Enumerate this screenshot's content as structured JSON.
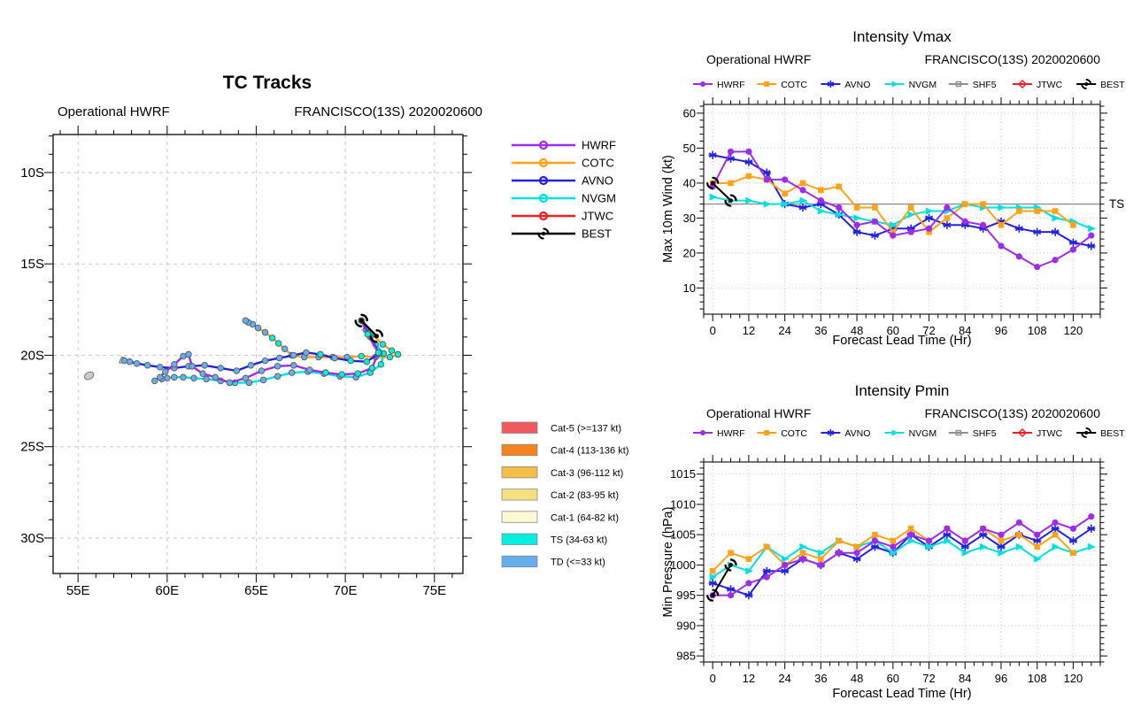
{
  "chart_data": [
    {
      "type": "map-tracks",
      "title": "TC Tracks",
      "subtitle_left": "Operational HWRF",
      "subtitle_right": "FRANCISCO(13S) 2020020600",
      "lon_range": [
        53.6,
        76.6
      ],
      "lat_range": [
        7.92,
        31.94
      ],
      "lon_ticks": {
        "labels": [
          "55E",
          "60E",
          "65E",
          "70E",
          "75E"
        ],
        "values": [
          55,
          60,
          65,
          70,
          75
        ],
        "minor_step": 1
      },
      "lat_ticks": {
        "labels": [
          "10S",
          "15S",
          "20S",
          "25S",
          "30S"
        ],
        "values": [
          10,
          15,
          20,
          25,
          30
        ],
        "minor_step": 1
      },
      "grid": true,
      "islands": [
        {
          "name": "island-northeast-of-track-end",
          "lon": 57.55,
          "lat": 20.27,
          "shape": "blob"
        },
        {
          "name": "island-southwest",
          "lon": 55.62,
          "lat": 21.12,
          "shape": "ellipse"
        }
      ],
      "marker_colors": {
        "ts": "#00F0DC",
        "td": "#66AEEC"
      },
      "track_legend": [
        "HWRF",
        "COTC",
        "AVNO",
        "NVGM",
        "JTWC",
        "BEST"
      ],
      "legend_colors": {
        "HWRF": "#A02BE8",
        "COTC": "#FFA216",
        "AVNO": "#2222E0",
        "NVGM": "#00E0E0",
        "JTWC": "#EE2020",
        "BEST": "#000000"
      },
      "tracks": [
        {
          "name": "HWRF",
          "color": "#A02BE8",
          "points": [
            [
              70.9,
              18.1
            ],
            [
              71.25,
              18.85
            ],
            [
              71.85,
              19.85
            ],
            [
              71.5,
              20.7
            ],
            [
              70.7,
              21.0
            ],
            [
              69.8,
              21.05
            ],
            [
              68.9,
              20.95
            ],
            [
              68.0,
              20.8
            ],
            [
              67.1,
              20.55
            ],
            [
              66.2,
              20.6
            ],
            [
              65.3,
              20.85
            ],
            [
              64.4,
              21.25
            ],
            [
              63.5,
              21.5
            ],
            [
              62.7,
              21.2
            ],
            [
              62.0,
              21.0
            ],
            [
              61.4,
              20.6
            ],
            [
              61.2,
              19.95
            ],
            [
              60.9,
              20.05
            ],
            [
              60.4,
              20.5
            ],
            [
              59.9,
              20.9
            ],
            [
              59.6,
              21.2
            ],
            [
              59.3,
              21.4
            ]
          ]
        },
        {
          "name": "COTC",
          "color": "#FFA216",
          "points": [
            [
              70.9,
              18.1
            ],
            [
              71.5,
              18.85
            ],
            [
              72.1,
              19.4
            ],
            [
              72.6,
              19.75
            ],
            [
              72.95,
              19.95
            ],
            [
              72.5,
              20.1
            ],
            [
              71.7,
              20.1
            ],
            [
              70.9,
              20.05
            ],
            [
              70.1,
              20.1
            ],
            [
              69.3,
              20.1
            ],
            [
              68.5,
              20.1
            ],
            [
              67.7,
              20.1
            ],
            [
              67.0,
              20.0
            ],
            [
              66.6,
              19.65
            ],
            [
              66.25,
              19.35
            ],
            [
              65.9,
              19.05
            ],
            [
              65.5,
              18.75
            ],
            [
              65.1,
              18.5
            ],
            [
              64.8,
              18.3
            ],
            [
              64.55,
              18.2
            ],
            [
              64.4,
              18.1
            ]
          ]
        },
        {
          "name": "AVNO",
          "color": "#2222E0",
          "points": [
            [
              70.9,
              18.1
            ],
            [
              71.4,
              19.0
            ],
            [
              71.9,
              19.9
            ],
            [
              71.2,
              20.35
            ],
            [
              70.3,
              20.3
            ],
            [
              69.4,
              20.15
            ],
            [
              68.6,
              19.95
            ],
            [
              67.8,
              19.85
            ],
            [
              67.1,
              20.0
            ],
            [
              66.3,
              20.15
            ],
            [
              65.5,
              20.3
            ],
            [
              64.7,
              20.55
            ],
            [
              63.9,
              20.85
            ],
            [
              63.0,
              20.7
            ],
            [
              62.1,
              20.55
            ],
            [
              61.2,
              20.6
            ],
            [
              60.4,
              20.7
            ],
            [
              59.6,
              20.65
            ],
            [
              58.9,
              20.55
            ],
            [
              58.3,
              20.45
            ],
            [
              57.9,
              20.35
            ],
            [
              57.6,
              20.3
            ]
          ]
        },
        {
          "name": "NVGM",
          "color": "#00E0E0",
          "points": [
            [
              70.9,
              18.1
            ],
            [
              71.15,
              18.6
            ],
            [
              71.7,
              19.4
            ],
            [
              72.15,
              19.9
            ],
            [
              72.0,
              20.5
            ],
            [
              71.4,
              20.95
            ],
            [
              70.6,
              21.2
            ],
            [
              69.7,
              21.15
            ],
            [
              68.8,
              21.0
            ],
            [
              67.9,
              20.9
            ],
            [
              67.0,
              20.95
            ],
            [
              66.2,
              21.15
            ],
            [
              65.4,
              21.35
            ],
            [
              64.6,
              21.5
            ],
            [
              63.8,
              21.5
            ],
            [
              63.0,
              21.4
            ],
            [
              62.2,
              21.3
            ],
            [
              61.5,
              21.25
            ],
            [
              60.9,
              21.2
            ],
            [
              60.4,
              21.2
            ],
            [
              60.0,
              21.25
            ],
            [
              59.7,
              21.3
            ]
          ]
        },
        {
          "name": "BEST",
          "color": "#000000",
          "points": [
            [
              70.9,
              18.1
            ],
            [
              71.75,
              18.95
            ]
          ]
        }
      ],
      "category_legend": [
        {
          "label": "Cat-5 (>=137 kt)",
          "color": "#F2595C"
        },
        {
          "label": "Cat-4 (113-136 kt)",
          "color": "#F5831F"
        },
        {
          "label": "Cat-3 (96-112 kt)",
          "color": "#F4BE49"
        },
        {
          "label": "Cat-2 (83-95 kt)",
          "color": "#F6DF7E"
        },
        {
          "label": "Cat-1 (64-82 kt)",
          "color": "#FAF9D3"
        },
        {
          "label": "TS (34-63 kt)",
          "color": "#00F0E0"
        },
        {
          "label": "TD (<=33 kt)",
          "color": "#64AEEB"
        }
      ]
    },
    {
      "type": "line",
      "title": "Intensity Vmax",
      "subtitle_left": "Operational HWRF",
      "subtitle_right": "FRANCISCO(13S) 2020020600",
      "xlabel": "Forecast Lead Time (Hr)",
      "ylabel": "Max 10m Wind (kt)",
      "x_hours": [
        0,
        6,
        12,
        18,
        24,
        30,
        36,
        42,
        48,
        54,
        60,
        66,
        72,
        78,
        84,
        90,
        96,
        102,
        108,
        114,
        120,
        126
      ],
      "xlim": [
        -3,
        129
      ],
      "ylim": [
        2.5,
        62.5
      ],
      "xticks": [
        0,
        12,
        24,
        36,
        48,
        60,
        72,
        84,
        96,
        108,
        120
      ],
      "x_minor_step": 3,
      "yticks": [
        10,
        20,
        30,
        40,
        50,
        60
      ],
      "y_minor_step": 2,
      "grid": true,
      "legend_position": "top",
      "ref_line": {
        "y": 34,
        "label": "TS"
      },
      "legend": [
        "HWRF",
        "COTC",
        "AVNO",
        "NVGM",
        "SHF5",
        "JTWC",
        "BEST"
      ],
      "series": [
        {
          "name": "HWRF",
          "color": "#A02BE8",
          "marker": "circle",
          "values": [
            39,
            49,
            49,
            41,
            41,
            38,
            35,
            33,
            28,
            29,
            25,
            26,
            27,
            33,
            29,
            28,
            22,
            19,
            16,
            18,
            21,
            25
          ]
        },
        {
          "name": "COTC",
          "color": "#FFA216",
          "marker": "square",
          "values": [
            40,
            40,
            42,
            41,
            37,
            40,
            38,
            39,
            33,
            33,
            26,
            33,
            26,
            30,
            34,
            34,
            28,
            32,
            32,
            32,
            28
          ]
        },
        {
          "name": "AVNO",
          "color": "#2222E0",
          "marker": "asterisk",
          "values": [
            48,
            47,
            46,
            43,
            34,
            33,
            34,
            31,
            26,
            25,
            27,
            27,
            30,
            28,
            28,
            27,
            29,
            27,
            26,
            26,
            23,
            22
          ]
        },
        {
          "name": "NVGM",
          "color": "#00E0E0",
          "marker": "triangle-right",
          "values": [
            36,
            35,
            35,
            34,
            34,
            35,
            32,
            31,
            30,
            29,
            28,
            31,
            32,
            32,
            34,
            33,
            33,
            33,
            33,
            30,
            29,
            27
          ]
        },
        {
          "name": "SHF5",
          "color": "#909090",
          "marker": "square-open",
          "values": []
        },
        {
          "name": "JTWC",
          "color": "#EE2020",
          "marker": "diamond-open",
          "values": []
        },
        {
          "name": "BEST",
          "color": "#000000",
          "marker": "hurricane",
          "values": [
            40,
            35
          ]
        }
      ]
    },
    {
      "type": "line",
      "title": "Intensity Pmin",
      "subtitle_left": "Operational HWRF",
      "subtitle_right": "FRANCISCO(13S) 2020020600",
      "xlabel": "Forecast Lead Time (Hr)",
      "ylabel": "Min Pressure (hPa)",
      "x_hours": [
        0,
        6,
        12,
        18,
        24,
        30,
        36,
        42,
        48,
        54,
        60,
        66,
        72,
        78,
        84,
        90,
        96,
        102,
        108,
        114,
        120,
        126
      ],
      "xlim": [
        -3,
        129
      ],
      "ylim": [
        984,
        1017
      ],
      "xticks": [
        0,
        12,
        24,
        36,
        48,
        60,
        72,
        84,
        96,
        108,
        120
      ],
      "x_minor_step": 3,
      "yticks": [
        985,
        990,
        995,
        1000,
        1005,
        1010,
        1015
      ],
      "y_minor_step": 1,
      "grid": true,
      "legend_position": "top",
      "ref_line": null,
      "legend": [
        "HWRF",
        "COTC",
        "AVNO",
        "NVGM",
        "SHF5",
        "JTWC",
        "BEST"
      ],
      "series": [
        {
          "name": "HWRF",
          "color": "#A02BE8",
          "marker": "circle",
          "values": [
            995,
            995,
            997,
            998,
            1000,
            1001,
            1000,
            1002,
            1002,
            1004,
            1003,
            1005,
            1004,
            1006,
            1004,
            1006,
            1005,
            1007,
            1005,
            1007,
            1006,
            1008
          ]
        },
        {
          "name": "COTC",
          "color": "#FFA216",
          "marker": "square",
          "values": [
            999,
            1002,
            1001,
            1003,
            1000,
            1002,
            1001,
            1004,
            1003,
            1005,
            1004,
            1006,
            1004,
            1006,
            1004,
            1006,
            1004,
            1005,
            1003,
            1005,
            1002
          ]
        },
        {
          "name": "AVNO",
          "color": "#2222E0",
          "marker": "asterisk",
          "values": [
            997,
            996,
            995,
            999,
            999,
            1001,
            1000,
            1002,
            1001,
            1003,
            1002,
            1005,
            1003,
            1005,
            1003,
            1005,
            1003,
            1005,
            1004,
            1006,
            1004,
            1006
          ]
        },
        {
          "name": "NVGM",
          "color": "#00E0E0",
          "marker": "triangle-right",
          "values": [
            998,
            1000,
            999,
            1003,
            1001,
            1003,
            1002,
            1004,
            1003,
            1004,
            1002,
            1004,
            1003,
            1004,
            1002,
            1003,
            1002,
            1003,
            1001,
            1003,
            1002,
            1003
          ]
        },
        {
          "name": "SHF5",
          "color": "#909090",
          "marker": "square-open",
          "values": []
        },
        {
          "name": "JTWC",
          "color": "#EE2020",
          "marker": "diamond-open",
          "values": []
        },
        {
          "name": "BEST",
          "color": "#000000",
          "marker": "hurricane",
          "values": [
            995,
            1000
          ]
        }
      ]
    }
  ]
}
